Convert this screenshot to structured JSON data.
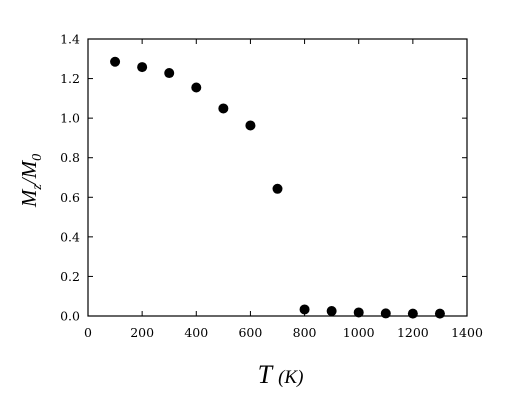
{
  "chart_data": {
    "type": "scatter",
    "xlabel": {
      "main": "T",
      "unit": "(K)"
    },
    "ylabel": {
      "main": "M",
      "sub1": "z",
      "sep": "/M",
      "sub2": "0"
    },
    "xlim": [
      0,
      1400
    ],
    "ylim": [
      0.0,
      1.4
    ],
    "x_ticks": [
      0,
      200,
      400,
      600,
      800,
      1000,
      1200,
      1400
    ],
    "x_tick_labels": [
      "0",
      "200",
      "400",
      "600",
      "800",
      "1000",
      "1200",
      "1400"
    ],
    "y_ticks": [
      0.0,
      0.2,
      0.4,
      0.6,
      0.8,
      1.0,
      1.2,
      1.4
    ],
    "y_tick_labels": [
      "0.0",
      "0.2",
      "0.4",
      "0.6",
      "0.8",
      "1.0",
      "1.2",
      "1.4"
    ],
    "grid": false,
    "marker_color": "#000000",
    "series": [
      {
        "x": [
          100,
          200,
          300,
          400,
          500,
          600,
          700,
          800,
          900,
          1000,
          1100,
          1200,
          1300
        ],
        "y": [
          1.285,
          1.258,
          1.228,
          1.155,
          1.049,
          0.963,
          0.643,
          0.033,
          0.025,
          0.018,
          0.013,
          0.012,
          0.012
        ]
      }
    ]
  }
}
